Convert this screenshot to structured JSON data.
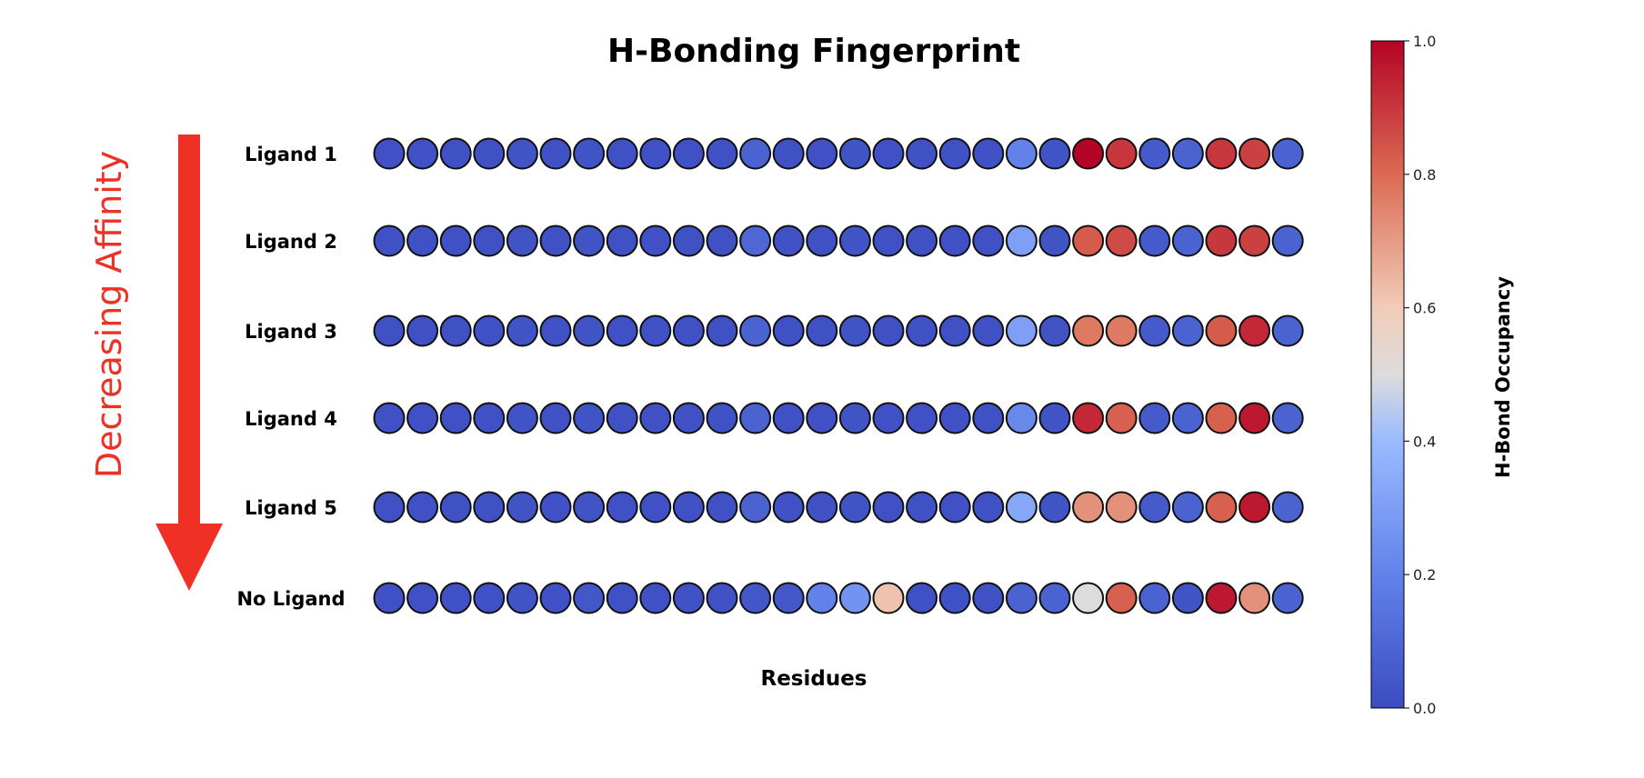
{
  "chart_data": {
    "type": "heatmap",
    "title": "H-Bonding Fingerprint",
    "xlabel": "Residues",
    "colorbar_label": "H-Bond Occupancy",
    "colorbar_range": [
      0,
      1
    ],
    "colorbar_ticks": [
      "0.0",
      "0.2",
      "0.4",
      "0.6",
      "0.8",
      "1.0"
    ],
    "colormap": "coolwarm",
    "annotation": "Decreasing Affinity",
    "annotation_color": "#ee3124",
    "grid": false,
    "rows": [
      {
        "label": "Ligand 1",
        "values": [
          0.02,
          0.02,
          0.02,
          0.02,
          0.03,
          0.02,
          0.03,
          0.02,
          0.02,
          0.02,
          0.02,
          0.08,
          0.02,
          0.02,
          0.03,
          0.02,
          0.02,
          0.02,
          0.02,
          0.2,
          0.03,
          1.0,
          0.9,
          0.05,
          0.08,
          0.9,
          0.88,
          0.08
        ]
      },
      {
        "label": "Ligand 2",
        "values": [
          0.02,
          0.02,
          0.02,
          0.02,
          0.03,
          0.02,
          0.03,
          0.02,
          0.02,
          0.02,
          0.02,
          0.1,
          0.02,
          0.02,
          0.03,
          0.02,
          0.02,
          0.02,
          0.02,
          0.3,
          0.03,
          0.83,
          0.86,
          0.05,
          0.08,
          0.9,
          0.88,
          0.08
        ]
      },
      {
        "label": "Ligand 3",
        "values": [
          0.02,
          0.02,
          0.02,
          0.02,
          0.03,
          0.02,
          0.03,
          0.02,
          0.02,
          0.02,
          0.02,
          0.08,
          0.02,
          0.02,
          0.03,
          0.02,
          0.02,
          0.02,
          0.02,
          0.3,
          0.03,
          0.77,
          0.77,
          0.05,
          0.08,
          0.83,
          0.93,
          0.08
        ]
      },
      {
        "label": "Ligand 4",
        "values": [
          0.02,
          0.02,
          0.02,
          0.02,
          0.03,
          0.02,
          0.03,
          0.02,
          0.02,
          0.02,
          0.02,
          0.08,
          0.02,
          0.02,
          0.03,
          0.02,
          0.02,
          0.02,
          0.02,
          0.22,
          0.03,
          0.93,
          0.82,
          0.05,
          0.08,
          0.82,
          0.96,
          0.08
        ]
      },
      {
        "label": "Ligand 5",
        "values": [
          0.02,
          0.02,
          0.02,
          0.02,
          0.03,
          0.02,
          0.03,
          0.02,
          0.02,
          0.02,
          0.02,
          0.08,
          0.02,
          0.02,
          0.03,
          0.02,
          0.02,
          0.02,
          0.02,
          0.33,
          0.03,
          0.72,
          0.72,
          0.05,
          0.08,
          0.82,
          0.96,
          0.08
        ]
      },
      {
        "label": "No Ligand",
        "values": [
          0.02,
          0.02,
          0.02,
          0.02,
          0.03,
          0.02,
          0.04,
          0.02,
          0.02,
          0.02,
          0.02,
          0.04,
          0.04,
          0.2,
          0.26,
          0.62,
          0.02,
          0.02,
          0.02,
          0.08,
          0.08,
          0.5,
          0.82,
          0.08,
          0.03,
          0.96,
          0.72,
          0.08
        ]
      }
    ]
  }
}
